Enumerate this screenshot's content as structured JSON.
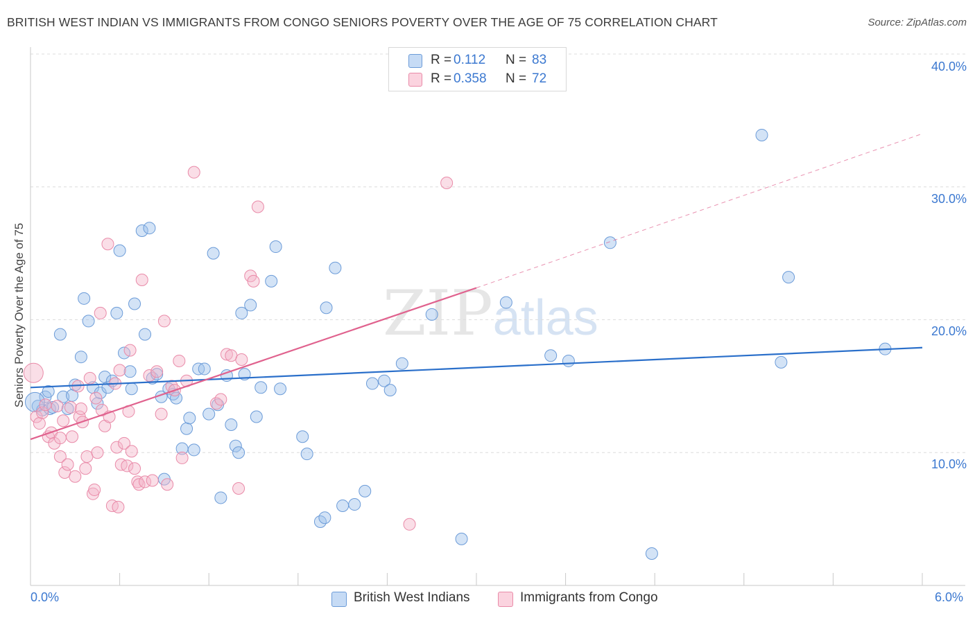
{
  "header": {
    "title": "BRITISH WEST INDIAN VS IMMIGRANTS FROM CONGO SENIORS POVERTY OVER THE AGE OF 75 CORRELATION CHART",
    "source": "Source: ZipAtlas.com"
  },
  "watermark": {
    "zip": "ZIP",
    "atlas": "atlas"
  },
  "legend": {
    "rows": [
      {
        "r_label": "R =",
        "r_value": "0.112",
        "n_label": "N =",
        "n_value": "83",
        "color": "#9ec0ec"
      },
      {
        "r_label": "R =",
        "r_value": "0.358",
        "n_label": "N =",
        "n_value": "72",
        "color": "#f4b6c9"
      }
    ],
    "bottom": [
      {
        "label": "British West Indians",
        "color": "#9ec0ec"
      },
      {
        "label": "Immigrants from Congo",
        "color": "#f4b6c9"
      }
    ]
  },
  "chart_data": {
    "type": "scatter",
    "title": "BRITISH WEST INDIAN VS IMMIGRANTS FROM CONGO SENIORS POVERTY OVER THE AGE OF 75 CORRELATION CHART",
    "ylabel": "Seniors Poverty Over the Age of 75",
    "xlim": [
      0,
      6
    ],
    "ylim": [
      0,
      40
    ],
    "x_ticks": [
      "0.0%",
      "6.0%"
    ],
    "y_ticks": [
      "10.0%",
      "20.0%",
      "30.0%",
      "40.0%"
    ],
    "y_tick_values": [
      10,
      20,
      30,
      40
    ],
    "grid": true,
    "legend_position": "top-center",
    "series": [
      {
        "name": "British West Indians",
        "color": "#9ec0ec",
        "stroke": "#6b9bd8",
        "trend_color": "#2a6fca",
        "trend": {
          "x": [
            0,
            6
          ],
          "y": [
            14.9,
            17.9
          ],
          "dashed_from": null
        },
        "points": [
          [
            0.05,
            13.5
          ],
          [
            0.08,
            13.2
          ],
          [
            0.1,
            14.2
          ],
          [
            0.12,
            14.6
          ],
          [
            0.13,
            13.3
          ],
          [
            0.2,
            18.9
          ],
          [
            0.22,
            14.2
          ],
          [
            0.25,
            13.3
          ],
          [
            0.28,
            14.3
          ],
          [
            0.3,
            15.1
          ],
          [
            0.34,
            17.2
          ],
          [
            0.36,
            21.6
          ],
          [
            0.39,
            19.9
          ],
          [
            0.42,
            14.9
          ],
          [
            0.45,
            13.7
          ],
          [
            0.47,
            14.5
          ],
          [
            0.5,
            15.7
          ],
          [
            0.52,
            14.9
          ],
          [
            0.55,
            15.4
          ],
          [
            0.58,
            20.5
          ],
          [
            0.6,
            25.2
          ],
          [
            0.63,
            17.5
          ],
          [
            0.67,
            16.1
          ],
          [
            0.7,
            21.2
          ],
          [
            0.75,
            26.7
          ],
          [
            0.77,
            18.9
          ],
          [
            0.8,
            26.9
          ],
          [
            0.82,
            15.6
          ],
          [
            0.85,
            15.9
          ],
          [
            0.88,
            14.2
          ],
          [
            0.9,
            8.0
          ],
          [
            0.93,
            14.8
          ],
          [
            0.96,
            14.4
          ],
          [
            0.98,
            14.1
          ],
          [
            1.02,
            10.3
          ],
          [
            1.05,
            11.8
          ],
          [
            1.07,
            12.6
          ],
          [
            1.1,
            10.2
          ],
          [
            1.13,
            16.3
          ],
          [
            1.17,
            16.3
          ],
          [
            1.2,
            12.9
          ],
          [
            1.23,
            25.0
          ],
          [
            1.26,
            13.6
          ],
          [
            1.28,
            6.6
          ],
          [
            1.32,
            15.8
          ],
          [
            1.35,
            12.1
          ],
          [
            1.38,
            10.5
          ],
          [
            1.4,
            10.0
          ],
          [
            1.42,
            20.5
          ],
          [
            1.44,
            15.9
          ],
          [
            1.48,
            21.1
          ],
          [
            1.52,
            12.7
          ],
          [
            1.55,
            14.9
          ],
          [
            1.62,
            22.9
          ],
          [
            1.65,
            25.5
          ],
          [
            1.68,
            14.8
          ],
          [
            1.83,
            11.2
          ],
          [
            1.86,
            9.9
          ],
          [
            1.95,
            4.8
          ],
          [
            1.98,
            5.1
          ],
          [
            1.99,
            20.9
          ],
          [
            2.05,
            23.9
          ],
          [
            2.1,
            6.0
          ],
          [
            2.18,
            6.1
          ],
          [
            2.25,
            7.1
          ],
          [
            2.3,
            15.2
          ],
          [
            2.38,
            15.4
          ],
          [
            2.42,
            14.7
          ],
          [
            2.5,
            16.7
          ],
          [
            2.7,
            20.4
          ],
          [
            2.9,
            3.5
          ],
          [
            3.2,
            21.3
          ],
          [
            3.5,
            17.3
          ],
          [
            3.62,
            16.9
          ],
          [
            3.9,
            25.8
          ],
          [
            4.18,
            2.4
          ],
          [
            4.92,
            33.9
          ],
          [
            5.05,
            16.8
          ],
          [
            5.1,
            23.2
          ],
          [
            5.75,
            17.8
          ],
          [
            0.03,
            13.8
          ],
          [
            0.15,
            13.4
          ],
          [
            0.68,
            14.8
          ]
        ]
      },
      {
        "name": "Immigrants from Congo",
        "color": "#f4b6c9",
        "stroke": "#e98aa8",
        "trend_color": "#e0628e",
        "trend": {
          "x": [
            0,
            3.0
          ],
          "y": [
            11.0,
            22.4
          ],
          "dashed_to": [
            6,
            34.0
          ]
        },
        "points": [
          [
            0.02,
            16.0
          ],
          [
            0.04,
            12.7
          ],
          [
            0.06,
            12.2
          ],
          [
            0.08,
            13.0
          ],
          [
            0.1,
            13.6
          ],
          [
            0.12,
            11.2
          ],
          [
            0.14,
            11.5
          ],
          [
            0.16,
            10.7
          ],
          [
            0.18,
            13.5
          ],
          [
            0.2,
            11.1
          ],
          [
            0.2,
            9.7
          ],
          [
            0.22,
            12.4
          ],
          [
            0.23,
            8.5
          ],
          [
            0.25,
            9.1
          ],
          [
            0.27,
            13.4
          ],
          [
            0.28,
            11.2
          ],
          [
            0.3,
            8.2
          ],
          [
            0.32,
            15.0
          ],
          [
            0.33,
            12.7
          ],
          [
            0.35,
            12.3
          ],
          [
            0.37,
            8.8
          ],
          [
            0.38,
            9.7
          ],
          [
            0.4,
            15.6
          ],
          [
            0.42,
            6.9
          ],
          [
            0.43,
            7.2
          ],
          [
            0.45,
            10.0
          ],
          [
            0.47,
            20.5
          ],
          [
            0.48,
            13.2
          ],
          [
            0.5,
            12.0
          ],
          [
            0.52,
            25.7
          ],
          [
            0.53,
            12.7
          ],
          [
            0.55,
            6.0
          ],
          [
            0.57,
            15.2
          ],
          [
            0.58,
            10.4
          ],
          [
            0.6,
            16.2
          ],
          [
            0.61,
            9.1
          ],
          [
            0.63,
            10.7
          ],
          [
            0.65,
            9.0
          ],
          [
            0.67,
            17.7
          ],
          [
            0.68,
            10.1
          ],
          [
            0.7,
            8.8
          ],
          [
            0.72,
            7.8
          ],
          [
            0.73,
            7.6
          ],
          [
            0.75,
            23.0
          ],
          [
            0.77,
            7.8
          ],
          [
            0.8,
            15.8
          ],
          [
            0.82,
            7.9
          ],
          [
            0.85,
            16.1
          ],
          [
            0.88,
            12.9
          ],
          [
            0.9,
            19.9
          ],
          [
            0.92,
            7.6
          ],
          [
            0.95,
            15.0
          ],
          [
            0.97,
            14.7
          ],
          [
            1.0,
            16.9
          ],
          [
            1.02,
            9.6
          ],
          [
            1.05,
            15.4
          ],
          [
            1.1,
            31.1
          ],
          [
            1.25,
            13.7
          ],
          [
            1.28,
            14.0
          ],
          [
            1.32,
            17.4
          ],
          [
            1.35,
            17.3
          ],
          [
            1.4,
            7.3
          ],
          [
            1.42,
            17.0
          ],
          [
            1.48,
            23.3
          ],
          [
            1.5,
            22.9
          ],
          [
            1.53,
            28.5
          ],
          [
            2.55,
            4.6
          ],
          [
            2.8,
            30.3
          ],
          [
            0.59,
            5.9
          ],
          [
            0.66,
            13.1
          ],
          [
            0.44,
            14.1
          ],
          [
            0.34,
            13.3
          ]
        ]
      }
    ]
  }
}
